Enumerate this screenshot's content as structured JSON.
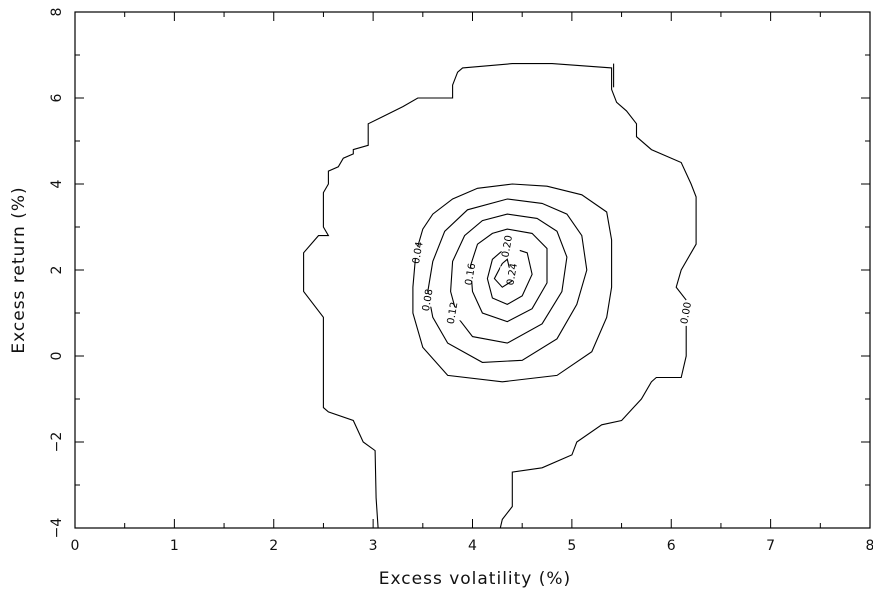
{
  "chart_data": {
    "type": "contour",
    "title": "",
    "xlabel": "Excess volatility (%)",
    "ylabel": "Excess return (%)",
    "xlim": [
      0,
      8
    ],
    "ylim": [
      -4,
      8
    ],
    "x_ticks": [
      "0",
      "1",
      "2",
      "3",
      "4",
      "5",
      "6",
      "7",
      "8"
    ],
    "y_ticks": [
      "−4",
      "−2",
      "0",
      "2",
      "4",
      "6",
      "8"
    ],
    "x_tick_values": [
      0,
      1,
      2,
      3,
      4,
      5,
      6,
      7,
      8
    ],
    "y_tick_values": [
      -4,
      -2,
      0,
      2,
      4,
      6,
      8
    ],
    "grid": false,
    "legend": "none",
    "contours": [
      {
        "level": 0.0,
        "label": "0.00",
        "label_at": [
          6.15,
          1.0
        ],
        "closed": false,
        "points": [
          [
            3.05,
            -4.0
          ],
          [
            3.03,
            -3.3
          ],
          [
            3.02,
            -2.2
          ],
          [
            2.9,
            -2.0
          ],
          [
            2.8,
            -1.5
          ],
          [
            2.55,
            -1.3
          ],
          [
            2.5,
            -1.2
          ],
          [
            2.5,
            -0.7
          ],
          [
            2.5,
            0.0
          ],
          [
            2.5,
            0.9
          ],
          [
            2.3,
            1.5
          ],
          [
            2.3,
            2.4
          ],
          [
            2.45,
            2.8
          ],
          [
            2.55,
            2.8
          ],
          [
            2.5,
            3.0
          ],
          [
            2.5,
            3.8
          ],
          [
            2.55,
            4.0
          ],
          [
            2.55,
            4.3
          ],
          [
            2.65,
            4.4
          ],
          [
            2.7,
            4.6
          ],
          [
            2.8,
            4.7
          ],
          [
            2.8,
            4.8
          ],
          [
            2.95,
            4.9
          ],
          [
            2.95,
            5.4
          ],
          [
            3.3,
            5.8
          ],
          [
            3.45,
            6.0
          ],
          [
            3.8,
            6.0
          ],
          [
            3.8,
            6.3
          ],
          [
            3.85,
            6.6
          ],
          [
            3.9,
            6.7
          ],
          [
            4.4,
            6.8
          ],
          [
            4.8,
            6.8
          ],
          [
            5.4,
            6.7
          ],
          [
            5.4,
            6.2
          ],
          [
            5.45,
            5.9
          ],
          [
            5.55,
            5.7
          ],
          [
            5.65,
            5.4
          ],
          [
            5.65,
            5.1
          ],
          [
            5.8,
            4.8
          ],
          [
            6.1,
            4.5
          ],
          [
            6.2,
            4.0
          ],
          [
            6.25,
            3.7
          ],
          [
            6.25,
            2.6
          ],
          [
            6.2,
            2.4
          ],
          [
            6.1,
            2.0
          ],
          [
            6.05,
            1.6
          ],
          [
            6.15,
            1.3
          ]
        ]
      },
      {
        "level": 0.0,
        "label": "",
        "closed": false,
        "points": [
          [
            6.15,
            0.7
          ],
          [
            6.15,
            0.0
          ],
          [
            6.1,
            -0.5
          ],
          [
            5.85,
            -0.5
          ],
          [
            5.8,
            -0.6
          ],
          [
            5.7,
            -1.0
          ],
          [
            5.5,
            -1.5
          ],
          [
            5.3,
            -1.6
          ],
          [
            5.05,
            -2.0
          ],
          [
            5.0,
            -2.3
          ],
          [
            4.7,
            -2.6
          ],
          [
            4.4,
            -2.7
          ],
          [
            4.4,
            -3.5
          ],
          [
            4.3,
            -3.8
          ],
          [
            4.28,
            -4.0
          ]
        ]
      },
      {
        "level": 0.0,
        "label": "",
        "closed": false,
        "points": [
          [
            5.42,
            6.8
          ],
          [
            5.42,
            6.25
          ]
        ]
      },
      {
        "level": 0.04,
        "label": "0.04",
        "label_at": [
          3.45,
          2.4
        ],
        "closed": true,
        "points": [
          [
            4.4,
            4.0
          ],
          [
            4.75,
            3.95
          ],
          [
            5.1,
            3.75
          ],
          [
            5.35,
            3.35
          ],
          [
            5.4,
            2.7
          ],
          [
            5.4,
            1.6
          ],
          [
            5.35,
            0.9
          ],
          [
            5.2,
            0.1
          ],
          [
            4.85,
            -0.45
          ],
          [
            4.3,
            -0.6
          ],
          [
            3.75,
            -0.45
          ],
          [
            3.5,
            0.2
          ],
          [
            3.4,
            1.0
          ],
          [
            3.4,
            1.6
          ],
          [
            3.43,
            2.4
          ],
          [
            3.5,
            2.95
          ],
          [
            3.6,
            3.3
          ],
          [
            3.8,
            3.65
          ],
          [
            4.05,
            3.9
          ]
        ]
      },
      {
        "level": 0.08,
        "label": "0.08",
        "label_at": [
          3.55,
          1.3
        ],
        "closed": true,
        "points": [
          [
            4.35,
            3.65
          ],
          [
            4.7,
            3.55
          ],
          [
            4.95,
            3.3
          ],
          [
            5.1,
            2.8
          ],
          [
            5.15,
            2.0
          ],
          [
            5.05,
            1.2
          ],
          [
            4.85,
            0.4
          ],
          [
            4.5,
            -0.1
          ],
          [
            4.1,
            -0.15
          ],
          [
            3.75,
            0.3
          ],
          [
            3.6,
            0.9
          ],
          [
            3.55,
            1.5
          ],
          [
            3.6,
            2.2
          ],
          [
            3.72,
            2.9
          ],
          [
            3.95,
            3.4
          ]
        ]
      },
      {
        "level": 0.12,
        "label": "0.12",
        "label_at": [
          3.8,
          1.0
        ],
        "closed": true,
        "points": [
          [
            4.35,
            3.3
          ],
          [
            4.65,
            3.2
          ],
          [
            4.85,
            2.9
          ],
          [
            4.95,
            2.3
          ],
          [
            4.9,
            1.5
          ],
          [
            4.7,
            0.75
          ],
          [
            4.35,
            0.3
          ],
          [
            4.0,
            0.45
          ],
          [
            3.85,
            0.9
          ],
          [
            3.78,
            1.5
          ],
          [
            3.8,
            2.2
          ],
          [
            3.92,
            2.8
          ],
          [
            4.1,
            3.15
          ]
        ]
      },
      {
        "level": 0.16,
        "label": "0.16",
        "label_at": [
          3.98,
          1.9
        ],
        "closed": true,
        "points": [
          [
            4.35,
            2.95
          ],
          [
            4.6,
            2.85
          ],
          [
            4.75,
            2.5
          ],
          [
            4.75,
            1.7
          ],
          [
            4.6,
            1.1
          ],
          [
            4.35,
            0.8
          ],
          [
            4.1,
            1.0
          ],
          [
            4.0,
            1.5
          ],
          [
            3.98,
            2.1
          ],
          [
            4.05,
            2.6
          ],
          [
            4.2,
            2.85
          ]
        ]
      },
      {
        "level": 0.2,
        "label": "0.20",
        "label_at": [
          4.35,
          2.55
        ],
        "closed": true,
        "points": [
          [
            4.35,
            2.55
          ],
          [
            4.55,
            2.4
          ],
          [
            4.6,
            1.9
          ],
          [
            4.5,
            1.4
          ],
          [
            4.35,
            1.2
          ],
          [
            4.2,
            1.35
          ],
          [
            4.15,
            1.8
          ],
          [
            4.2,
            2.25
          ]
        ]
      },
      {
        "level": 0.24,
        "label": "0.24",
        "label_at": [
          4.4,
          1.9
        ],
        "closed": true,
        "points": [
          [
            4.3,
            2.15
          ],
          [
            4.35,
            2.25
          ],
          [
            4.4,
            1.75
          ],
          [
            4.3,
            1.6
          ],
          [
            4.22,
            1.8
          ]
        ]
      }
    ]
  }
}
